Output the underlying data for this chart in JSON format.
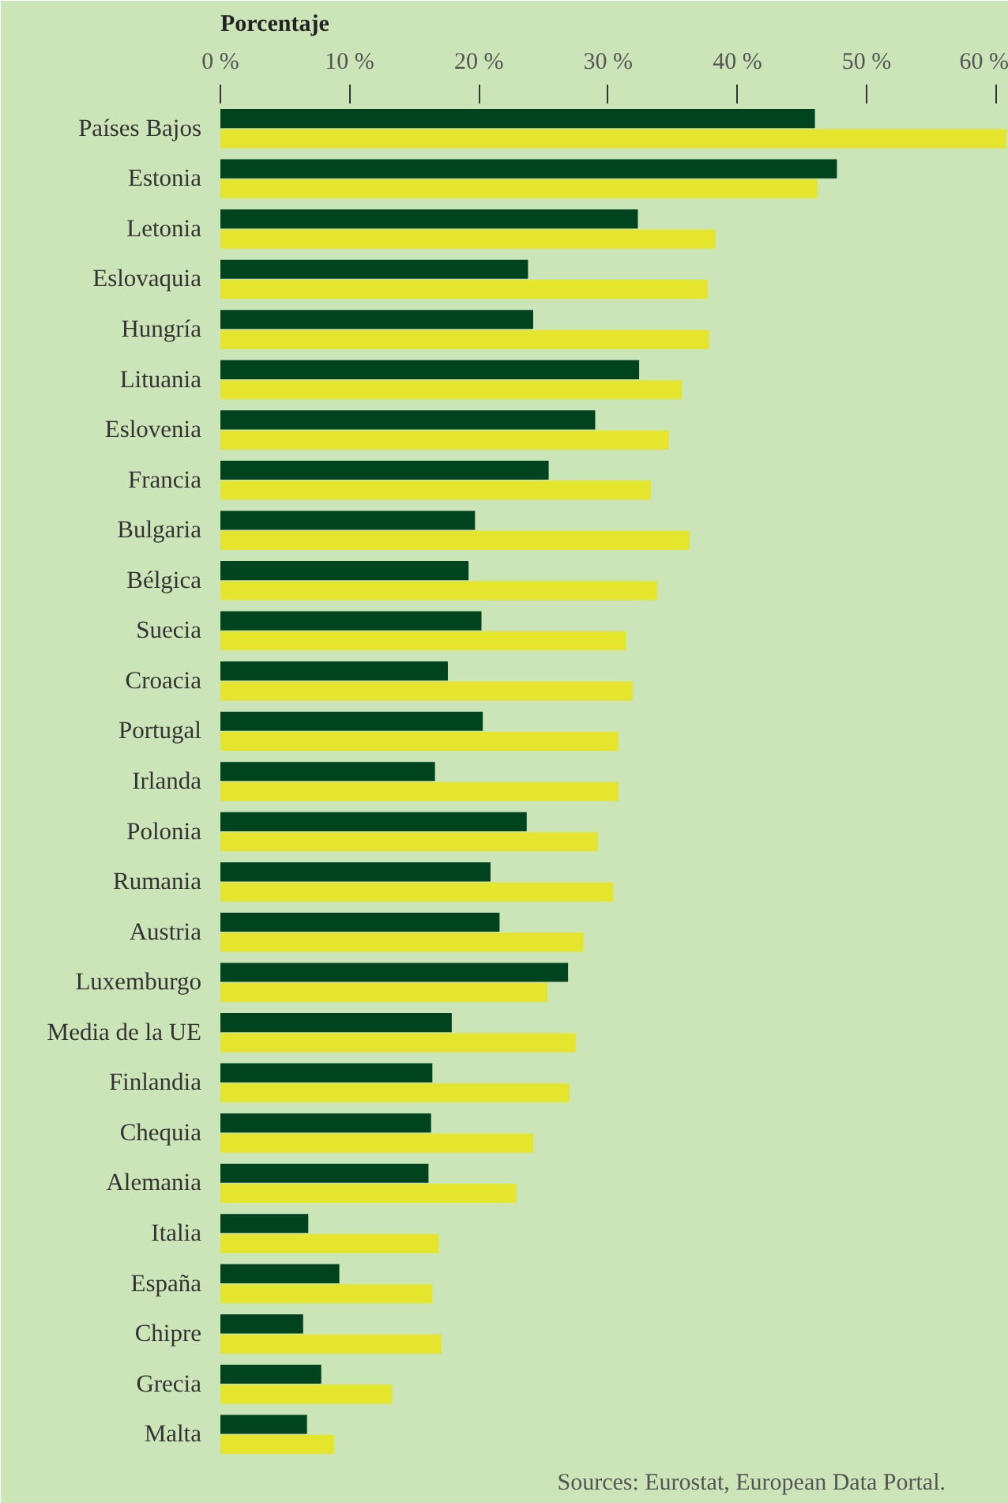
{
  "chart_data": {
    "type": "bar",
    "orientation": "horizontal",
    "xlabel": "Porcentaje",
    "categories": [
      "Países Bajos",
      "Estonia",
      "Letonia",
      "Eslovaquia",
      "Hungría",
      "Lituania",
      "Eslovenia",
      "Francia",
      "Bulgaria",
      "Bélgica",
      "Suecia",
      "Croacia",
      "Portugal",
      "Irlanda",
      "Polonia",
      "Rumania",
      "Austria",
      "Luxemburgo",
      "Media de la UE",
      "Finlandia",
      "Chequia",
      "Alemania",
      "Italia",
      "España",
      "Chipre",
      "Grecia",
      "Malta"
    ],
    "series": [
      {
        "color": "#00431f",
        "values": [
          46.0,
          47.7,
          32.3,
          23.8,
          24.2,
          32.4,
          29.0,
          25.4,
          19.7,
          19.2,
          20.2,
          17.6,
          20.3,
          16.6,
          23.7,
          20.9,
          21.6,
          26.9,
          17.9,
          16.4,
          16.3,
          16.1,
          6.8,
          9.2,
          6.4,
          7.8,
          6.7
        ]
      },
      {
        "color": "#e5e52d",
        "values": [
          60.8,
          46.2,
          38.3,
          37.7,
          37.8,
          35.7,
          34.7,
          33.3,
          36.3,
          33.8,
          31.4,
          31.9,
          30.8,
          30.8,
          29.2,
          30.4,
          28.1,
          25.3,
          27.5,
          27.0,
          24.2,
          22.9,
          16.9,
          16.4,
          17.1,
          13.3,
          8.8
        ]
      }
    ],
    "xlim": [
      0,
      61
    ],
    "xticks": [
      {
        "value": 0,
        "label": "0 %"
      },
      {
        "value": 10,
        "label": "10 %"
      },
      {
        "value": 20,
        "label": "20 %"
      },
      {
        "value": 30,
        "label": "30 %"
      },
      {
        "value": 40,
        "label": "40 %"
      },
      {
        "value": 50,
        "label": "50 %"
      },
      {
        "value": 60,
        "label": "60 %"
      }
    ],
    "annotations": [
      "Sources: Eurostat, European Data Portal."
    ]
  }
}
